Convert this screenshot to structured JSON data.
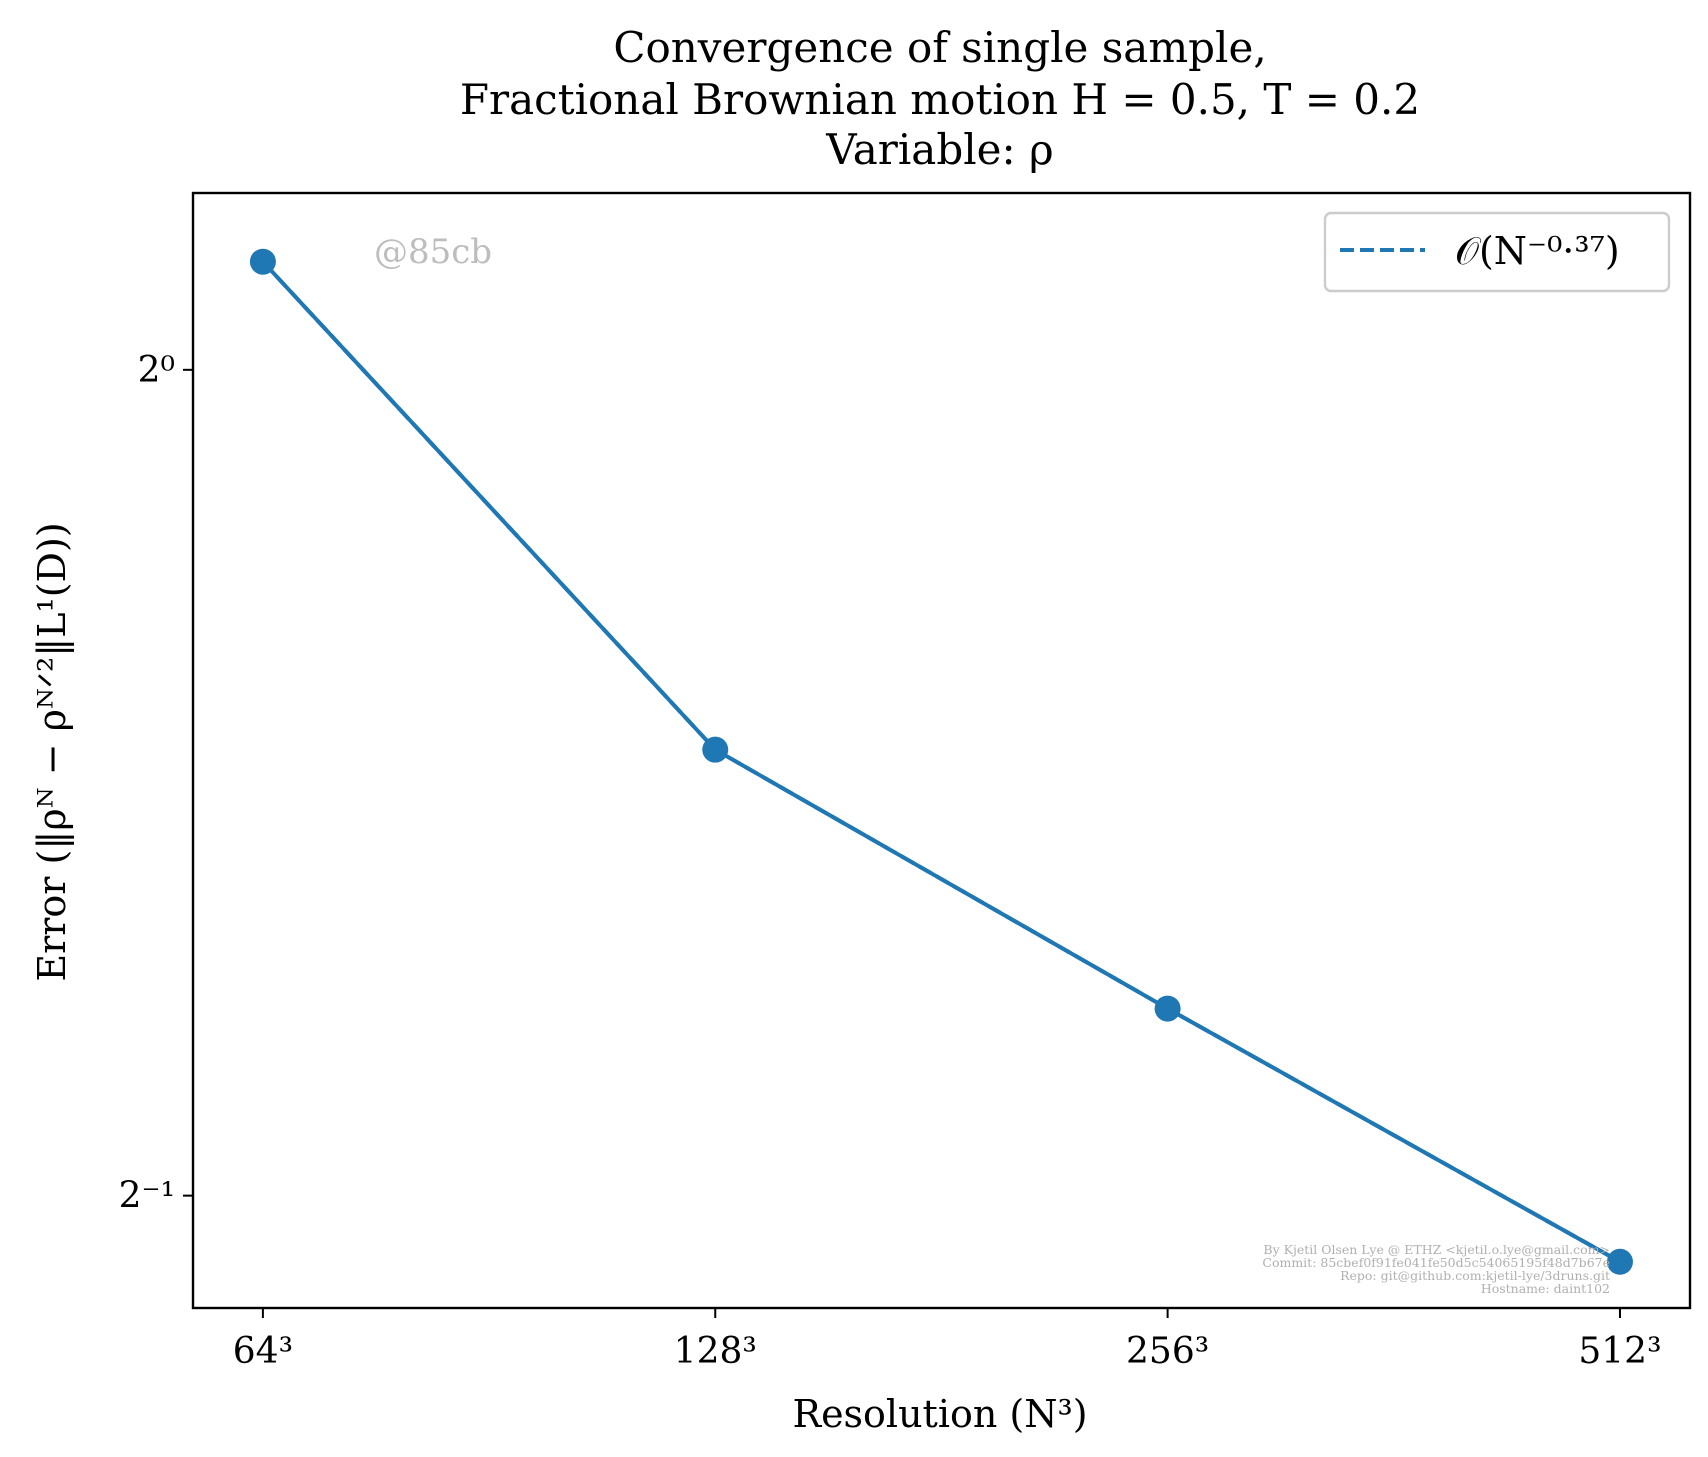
{
  "chart_data": {
    "type": "line",
    "title_lines": [
      "Convergence of single sample,",
      "Fractional Brownian motion H = 0.5, T = 0.2",
      "Variable: ρ"
    ],
    "xlabel": "Resolution (N³)",
    "ylabel": "Error (‖ρᴺ − ρᴺᐟ²‖L¹(D))",
    "x_scale": "log2",
    "y_scale": "log2",
    "x": [
      64,
      128,
      256,
      512
    ],
    "x_tick_labels": [
      "64³",
      "128³",
      "256³",
      "512³"
    ],
    "y_ticks": [
      {
        "value": 1,
        "label": "2⁰"
      },
      {
        "value": 0.5,
        "label": "2⁻¹"
      }
    ],
    "xlim": [
      57.5,
      570
    ],
    "ylim": [
      0.455,
      1.16
    ],
    "grid": false,
    "legend_position": "upper right",
    "series": [
      {
        "marker": "circle",
        "line": "solid",
        "color": "#1f77b4",
        "values": [
          1.095,
          0.727,
          0.585,
          0.473
        ]
      },
      {
        "name": "𝒪(N⁻⁰·³⁷)",
        "line": "dashed",
        "color": "#1f77b4",
        "values": [
          1.095,
          0.727,
          0.585,
          0.473
        ]
      }
    ],
    "watermark": "@85cb",
    "footer_text": [
      "By Kjetil Olsen Lye @ ETHZ <kjetil.o.lye@gmail.com>",
      "Commit: 85cbef0f91fe041fe50d5c54065195f48d7b67e",
      "Repo: git@github.com:kjetil-lye/3druns.git",
      "Hostname: daint102"
    ]
  }
}
